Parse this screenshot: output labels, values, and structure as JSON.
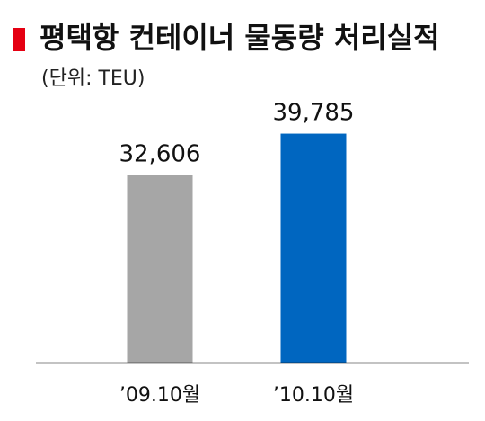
{
  "chart_data": {
    "type": "bar",
    "title": "평택항 컨테이너 물동량 처리실적",
    "unit_label": "(단위: TEU)",
    "categories": [
      "’09.10월",
      "’10.10월"
    ],
    "values": [
      32606,
      39785
    ],
    "value_labels": [
      "32,606",
      "39,785"
    ],
    "colors": [
      "#a6a6a6",
      "#0066c0"
    ],
    "accent": "#e50012",
    "ylim": [
      0,
      43000
    ],
    "grid": false,
    "legend": "none"
  }
}
